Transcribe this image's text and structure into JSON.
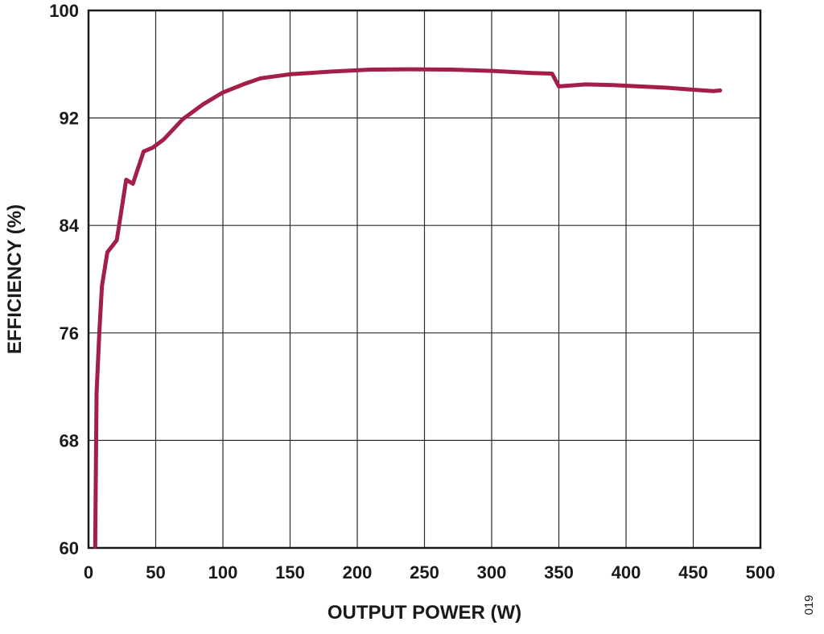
{
  "chart_data": {
    "type": "line",
    "title": "",
    "xlabel": "OUTPUT POWER (W)",
    "ylabel": "EFFICIENCY (%)",
    "xlim": [
      0,
      500
    ],
    "ylim": [
      60,
      100
    ],
    "xticks": [
      0,
      50,
      100,
      150,
      200,
      250,
      300,
      350,
      400,
      450,
      500
    ],
    "yticks": [
      60,
      68,
      76,
      84,
      92,
      100
    ],
    "grid": true,
    "legend": "none",
    "series": [
      {
        "color": "#a31f47",
        "x": [
          5,
          6,
          8,
          10,
          14,
          21,
          28,
          33,
          41,
          48,
          56,
          70,
          85,
          100,
          115,
          128,
          150,
          180,
          210,
          240,
          270,
          300,
          330,
          345,
          350,
          370,
          390,
          410,
          430,
          450,
          465,
          470
        ],
        "y": [
          60.1,
          71.5,
          76,
          79.5,
          82,
          82.9,
          87.4,
          87.1,
          89.5,
          89.8,
          90.4,
          91.9,
          93.0,
          93.9,
          94.5,
          94.95,
          95.25,
          95.45,
          95.6,
          95.62,
          95.6,
          95.5,
          95.35,
          95.3,
          94.35,
          94.5,
          94.45,
          94.35,
          94.25,
          94.1,
          94.0,
          94.05
        ]
      }
    ]
  },
  "figure_number": "019"
}
